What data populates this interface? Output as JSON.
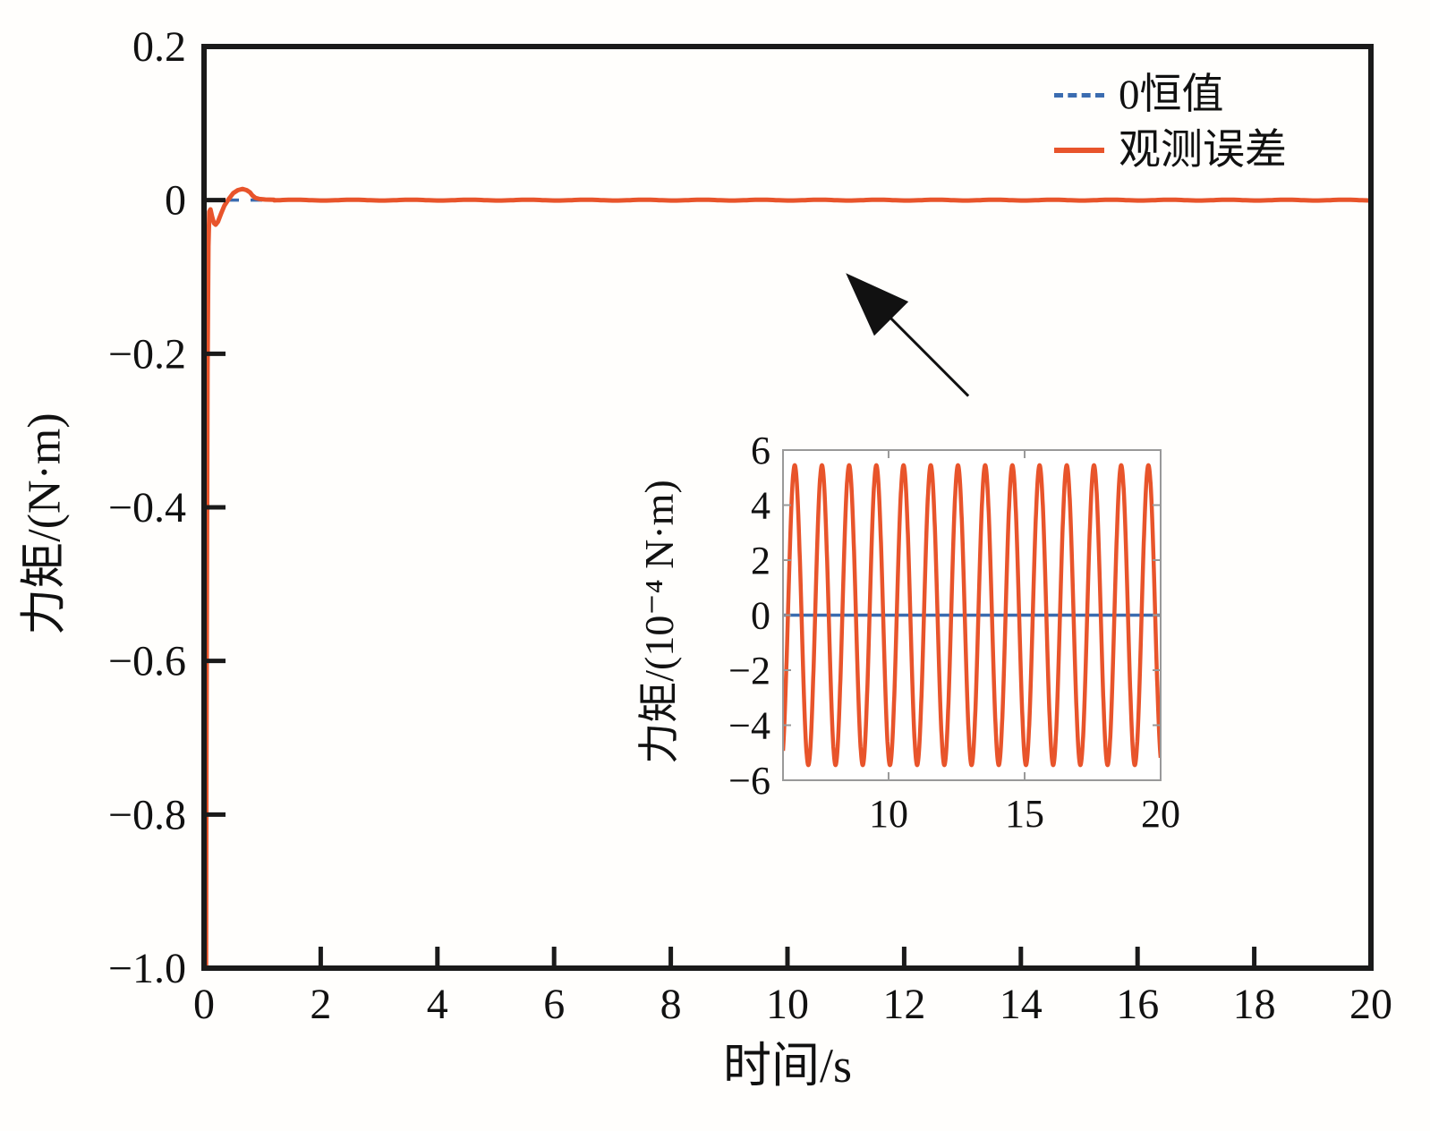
{
  "colors": {
    "observed_error": "#E8542B",
    "zero_reference": "#3B6CB0",
    "axis": "#1a1a1a",
    "inset_border": "#999999",
    "background": "#fffefc"
  },
  "legend": {
    "items": [
      {
        "label": "0恒值",
        "line_style": "dashed",
        "color": "#3B6CB0"
      },
      {
        "label": "观测误差",
        "line_style": "solid",
        "color": "#E8542B"
      }
    ]
  },
  "chart_data": [
    {
      "id": "main",
      "type": "line",
      "title": "",
      "xlabel": "时间/s",
      "ylabel": "力矩/(N·m)",
      "xlim": [
        0,
        20
      ],
      "ylim": [
        -1.0,
        0.2
      ],
      "grid": false,
      "legend_position": "top-right-inside",
      "xticks": [
        {
          "v": 0,
          "label": "0"
        },
        {
          "v": 2,
          "label": "2"
        },
        {
          "v": 4,
          "label": "4"
        },
        {
          "v": 6,
          "label": "6"
        },
        {
          "v": 8,
          "label": "8"
        },
        {
          "v": 10,
          "label": "10"
        },
        {
          "v": 12,
          "label": "12"
        },
        {
          "v": 14,
          "label": "14"
        },
        {
          "v": 16,
          "label": "16"
        },
        {
          "v": 18,
          "label": "18"
        },
        {
          "v": 20,
          "label": "20"
        }
      ],
      "yticks": [
        {
          "v": 0.2,
          "label": "0.2"
        },
        {
          "v": 0,
          "label": "0"
        },
        {
          "v": -0.2,
          "label": "−0.2"
        },
        {
          "v": -0.4,
          "label": "−0.4"
        },
        {
          "v": -0.6,
          "label": "−0.6"
        },
        {
          "v": -0.8,
          "label": "−0.8"
        },
        {
          "v": -1.0,
          "label": "−1.0"
        }
      ],
      "series": [
        {
          "name": "0恒值",
          "style": "dashed",
          "color": "#3B6CB0",
          "points": [
            [
              0,
              0
            ],
            [
              20,
              0
            ]
          ]
        },
        {
          "name": "观测误差",
          "style": "solid",
          "color": "#E8542B",
          "transient_points": [
            [
              0.034,
              -1.02
            ],
            [
              0.04,
              -0.75
            ],
            [
              0.05,
              -0.45
            ],
            [
              0.06,
              -0.22
            ],
            [
              0.075,
              -0.06
            ],
            [
              0.09,
              -0.015
            ],
            [
              0.11,
              -0.012
            ],
            [
              0.14,
              -0.022
            ],
            [
              0.17,
              -0.03
            ],
            [
              0.2,
              -0.032
            ],
            [
              0.24,
              -0.028
            ],
            [
              0.29,
              -0.018
            ],
            [
              0.35,
              -0.007
            ],
            [
              0.42,
              0.001
            ],
            [
              0.5,
              0.009
            ],
            [
              0.58,
              0.013
            ],
            [
              0.66,
              0.0145
            ],
            [
              0.73,
              0.013
            ],
            [
              0.79,
              0.01
            ],
            [
              0.83,
              0.006
            ],
            [
              0.88,
              0.003
            ],
            [
              0.95,
              0.0015
            ],
            [
              1.05,
              0.0008
            ],
            [
              1.2,
              0.0005
            ]
          ],
          "steady_state": {
            "from_t": 1.2,
            "to_t": 20,
            "amplitude": 0.000545,
            "period_s": 1.0,
            "peak_t": 6.55
          }
        }
      ],
      "annotation": {
        "type": "arrow",
        "tip_xy": [
          11.0,
          -0.095
        ],
        "tail_xy": [
          13.1,
          -0.255
        ]
      }
    },
    {
      "id": "inset",
      "type": "line",
      "title": "",
      "xlabel": "",
      "ylabel": "力矩/(10⁻⁴ N·m)",
      "xlim": [
        6.12,
        20
      ],
      "ylim": [
        -6,
        6
      ],
      "grid": false,
      "xticks": [
        {
          "v": 10,
          "label": "10"
        },
        {
          "v": 15,
          "label": "15"
        },
        {
          "v": 20,
          "label": "20"
        }
      ],
      "yticks": [
        {
          "v": 6,
          "label": "6"
        },
        {
          "v": 4,
          "label": "4"
        },
        {
          "v": 2,
          "label": "2"
        },
        {
          "v": 0,
          "label": "0"
        },
        {
          "v": -2,
          "label": "−2"
        },
        {
          "v": -4,
          "label": "−4"
        },
        {
          "v": -6,
          "label": "−6"
        }
      ],
      "series": [
        {
          "name": "0恒值",
          "style": "solid",
          "color": "#3B6CB0",
          "points": [
            [
              6.12,
              0
            ],
            [
              20,
              0
            ]
          ]
        },
        {
          "name": "观测误差",
          "style": "solid",
          "color": "#E8542B",
          "sine": {
            "amplitude": 5.45,
            "period_s": 1.0,
            "peak_t": 6.55,
            "from_t": 6.12,
            "to_t": 20
          }
        }
      ]
    }
  ]
}
